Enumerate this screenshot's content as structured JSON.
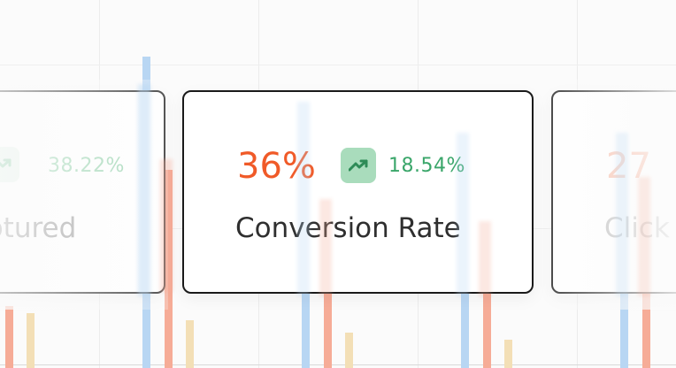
{
  "colors": {
    "value_orange": "#f05a28",
    "trend_green": "#3aa66a",
    "trend_bg": "#a9dcbc",
    "label_dark": "#2f2f2f",
    "bar_blue": "#b8d6f3",
    "bar_orange": "#f6ac97",
    "bar_sand": "#f3dfb6"
  },
  "cards": {
    "left": {
      "value": "",
      "change": "38.22%",
      "label": "ptured",
      "icon": "trend-up-icon"
    },
    "mid": {
      "value": "36%",
      "change": "18.54%",
      "label": "Conversion Rate",
      "icon": "trend-up-icon"
    },
    "right": {
      "value": "27",
      "change": "",
      "label": "Click",
      "icon": ""
    }
  }
}
